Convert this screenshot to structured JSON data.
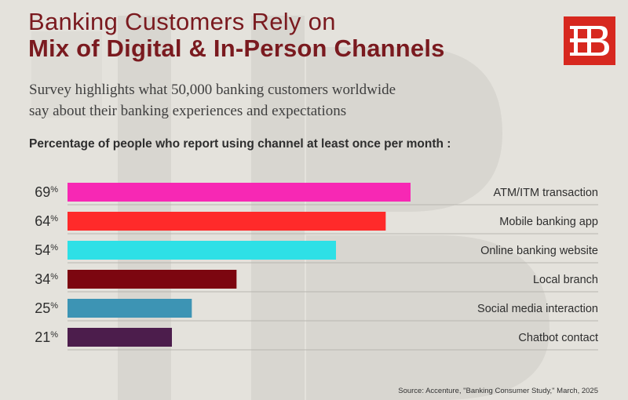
{
  "header": {
    "title_line1": "Banking Customers Rely on",
    "title_line2": "Mix of Digital & In-Person Channels",
    "subtitle_line1": "Survey highlights what 50,000 banking customers worldwide",
    "subtitle_line2": "say about their banking experiences and expectations",
    "logo_icon": "bb-monogram-logo",
    "logo_color": "#d7281f"
  },
  "chart_heading": "Percentage of people who report using channel at least once per month :",
  "source": "Source: Accenture, \"Banking Consumer Study,\" March, 2025",
  "chart_data": {
    "type": "bar",
    "orientation": "horizontal",
    "categories": [
      "ATM/ITM transaction",
      "Mobile banking app",
      "Online banking website",
      "Local branch",
      "Social media interaction",
      "Chatbot contact"
    ],
    "values": [
      69,
      64,
      54,
      34,
      25,
      21
    ],
    "value_labels": [
      "69",
      "64",
      "54",
      "34",
      "25",
      "21"
    ],
    "unit": "%",
    "colors": [
      "#f728b4",
      "#ff2a2a",
      "#2ee0e6",
      "#7c0610",
      "#3d94b4",
      "#4c1d4c"
    ],
    "xlim": [
      0,
      100
    ],
    "grid": false,
    "legend": "none"
  }
}
